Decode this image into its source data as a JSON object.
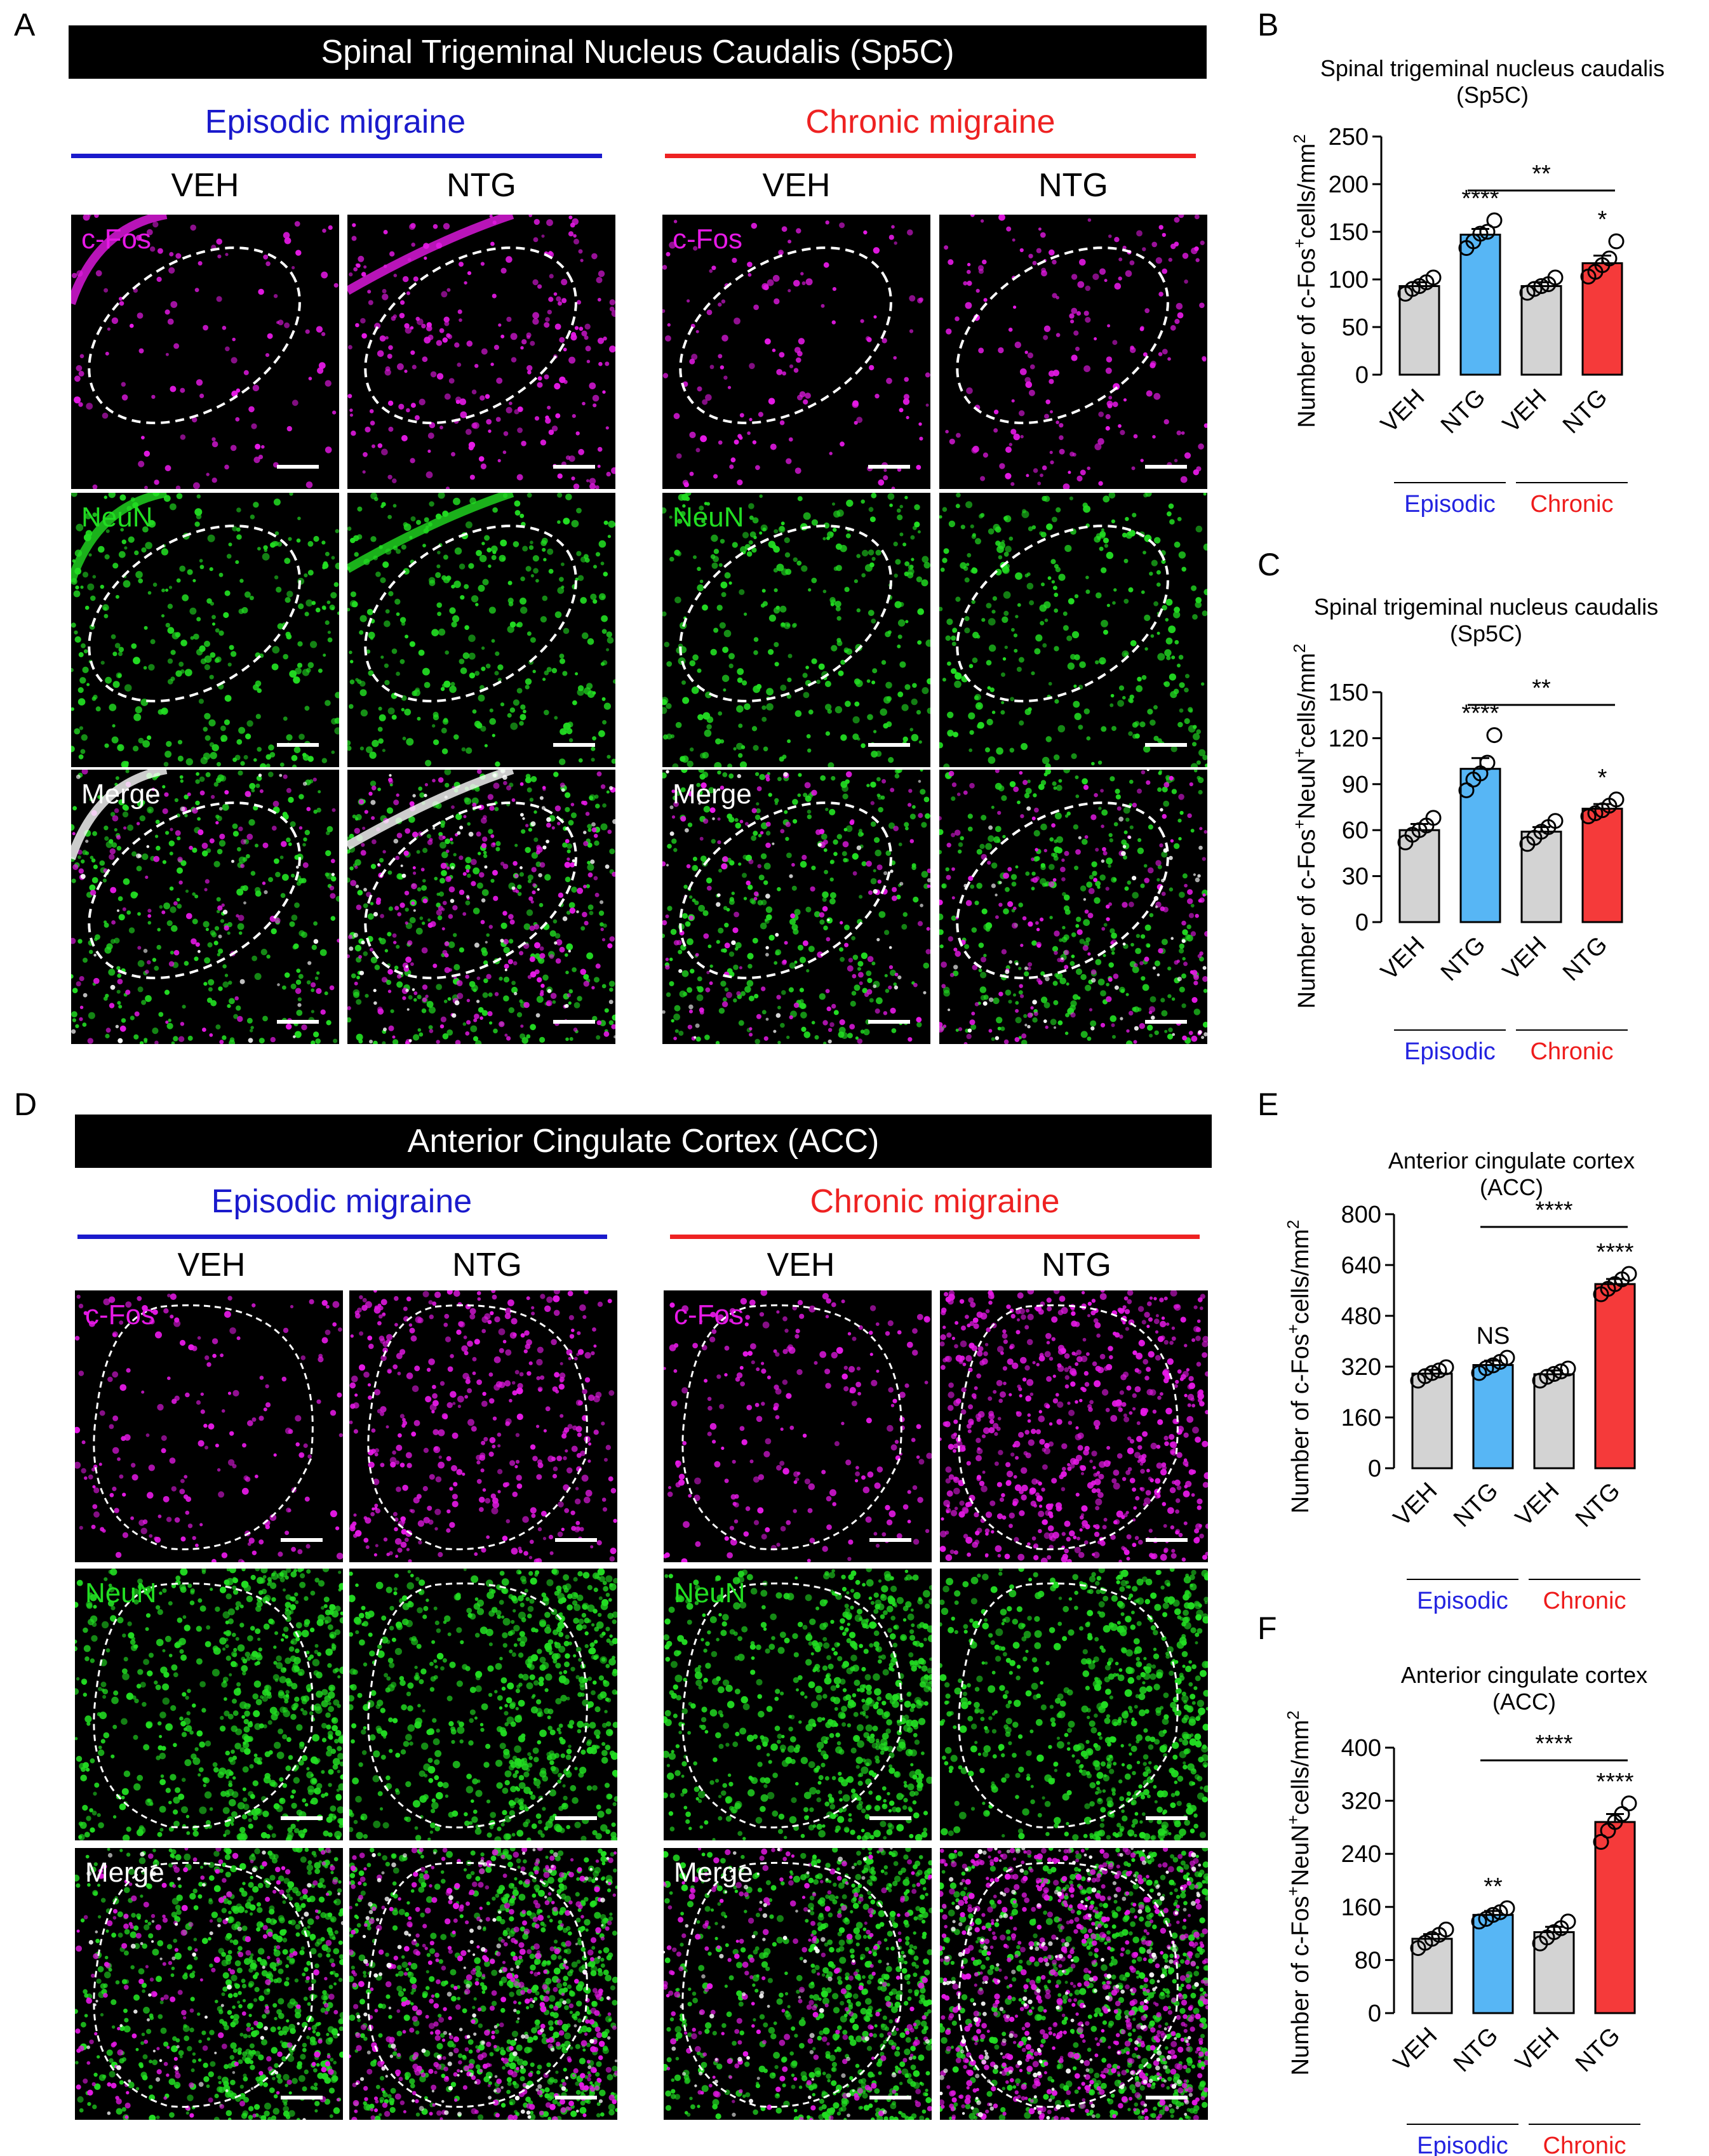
{
  "panels": {
    "A": {
      "letter": "A",
      "banner": "Spinal Trigeminal Nucleus Caudalis (Sp5C)",
      "groups": [
        {
          "title": "Episodic migraine",
          "color": "#1a1acc"
        },
        {
          "title": "Chronic migraine",
          "color": "#ee2222"
        }
      ],
      "columns": [
        "VEH",
        "NTG",
        "VEH",
        "NTG"
      ],
      "rows": [
        {
          "label": "c-Fos",
          "color": "#e619e6"
        },
        {
          "label": "NeuN",
          "color": "#22dd22"
        },
        {
          "label": "Merge",
          "color": "#ffffff"
        }
      ]
    },
    "D": {
      "letter": "D",
      "banner": "Anterior Cingulate Cortex (ACC)",
      "groups": [
        {
          "title": "Episodic migraine",
          "color": "#1a1acc"
        },
        {
          "title": "Chronic migraine",
          "color": "#ee2222"
        }
      ],
      "columns": [
        "VEH",
        "NTG",
        "VEH",
        "NTG"
      ],
      "rows": [
        {
          "label": "c-Fos",
          "color": "#e619e6"
        },
        {
          "label": "NeuN",
          "color": "#22dd22"
        },
        {
          "label": "Merge",
          "color": "#ffffff"
        }
      ]
    }
  },
  "colors": {
    "veh_bar": "#d3d3d3",
    "episodic_ntg_bar": "#57b6f5",
    "chronic_ntg_bar": "#f53a3a",
    "episodic_text": "#2323e0",
    "chronic_text": "#ee1c1c",
    "magenta": "#e619e6",
    "green": "#22dd22"
  },
  "chart_data": [
    {
      "letter": "B",
      "type": "bar",
      "title": [
        "Spinal trigeminal nucleus caudalis",
        "(Sp5C)"
      ],
      "ylabel_parts": [
        "Number of c-Fos",
        "+",
        "cells/mm",
        "2"
      ],
      "categories": [
        "VEH",
        "NTG",
        "VEH",
        "NTG"
      ],
      "groups": [
        "Episodic",
        "Chronic"
      ],
      "values": [
        93,
        147,
        93,
        117
      ],
      "errors": [
        4,
        6,
        4,
        8
      ],
      "points": [
        [
          85,
          90,
          93,
          97,
          102
        ],
        [
          133,
          140,
          148,
          150,
          162
        ],
        [
          86,
          90,
          93,
          95,
          102
        ],
        [
          103,
          108,
          115,
          122,
          140
        ]
      ],
      "ylim": [
        0,
        250
      ],
      "yticks": [
        "0",
        "50",
        "100",
        "150",
        "200",
        "250"
      ],
      "sig": [
        "",
        "****",
        "",
        "*"
      ],
      "bracket": {
        "from": 1,
        "to": 3,
        "label": "**"
      }
    },
    {
      "letter": "C",
      "type": "bar",
      "title": [
        "Spinal trigeminal nucleus caudalis",
        "(Sp5C)"
      ],
      "ylabel_parts": [
        "Number of c-Fos",
        "+",
        "NeuN",
        "+",
        "cells/mm",
        "2"
      ],
      "categories": [
        "VEH",
        "NTG",
        "VEH",
        "NTG"
      ],
      "groups": [
        "Episodic",
        "Chronic"
      ],
      "values": [
        60,
        100,
        59,
        74
      ],
      "errors": [
        4,
        7,
        3,
        3
      ],
      "points": [
        [
          52,
          57,
          60,
          63,
          68
        ],
        [
          86,
          93,
          97,
          104,
          122
        ],
        [
          51,
          55,
          59,
          62,
          66
        ],
        [
          69,
          71,
          73,
          76,
          80
        ]
      ],
      "ylim": [
        0,
        150
      ],
      "yticks": [
        "0",
        "30",
        "60",
        "90",
        "120",
        "150"
      ],
      "sig": [
        "",
        "****",
        "",
        "*"
      ],
      "bracket": {
        "from": 1,
        "to": 3,
        "label": "**"
      }
    },
    {
      "letter": "E",
      "type": "bar",
      "title": [
        "Anterior cingulate cortex",
        "(ACC)"
      ],
      "ylabel_parts": [
        "Number of c-Fos",
        "+",
        "cells/mm",
        "2"
      ],
      "categories": [
        "VEH",
        "NTG",
        "VEH",
        "NTG"
      ],
      "groups": [
        "Episodic",
        "Chronic"
      ],
      "values": [
        298,
        325,
        296,
        580
      ],
      "errors": [
        12,
        14,
        12,
        16
      ],
      "points": [
        [
          276,
          290,
          300,
          308,
          318
        ],
        [
          300,
          315,
          324,
          335,
          348
        ],
        [
          276,
          288,
          297,
          305,
          314
        ],
        [
          548,
          565,
          580,
          595,
          612
        ]
      ],
      "ylim": [
        0,
        800
      ],
      "yticks": [
        "0",
        "160",
        "320",
        "480",
        "640",
        "800"
      ],
      "sig": [
        "",
        "NS",
        "",
        "****"
      ],
      "bracket": {
        "from": 1,
        "to": 3,
        "label": "****"
      }
    },
    {
      "letter": "F",
      "type": "bar",
      "title": [
        "Anterior cingulate cortex",
        "(ACC)"
      ],
      "ylabel_parts": [
        "Number of c-Fos",
        "+",
        "NeuN",
        "+",
        "cells/mm",
        "2"
      ],
      "categories": [
        "VEH",
        "NTG",
        "VEH",
        "NTG"
      ],
      "groups": [
        "Episodic",
        "Chronic"
      ],
      "values": [
        112,
        148,
        122,
        288
      ],
      "errors": [
        7,
        6,
        8,
        12
      ],
      "points": [
        [
          98,
          106,
          112,
          118,
          126
        ],
        [
          138,
          142,
          148,
          152,
          158
        ],
        [
          105,
          114,
          122,
          128,
          138
        ],
        [
          258,
          275,
          288,
          300,
          316
        ]
      ],
      "ylim": [
        0,
        400
      ],
      "yticks": [
        "0",
        "80",
        "160",
        "240",
        "320",
        "400"
      ],
      "sig": [
        "",
        "**",
        "",
        "****"
      ],
      "bracket": {
        "from": 1,
        "to": 3,
        "label": "****"
      }
    }
  ]
}
